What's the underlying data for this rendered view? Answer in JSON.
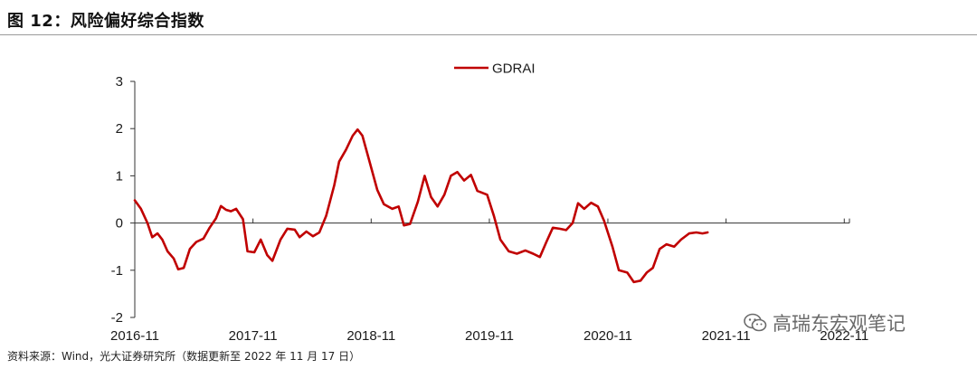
{
  "figure": {
    "title": "图 12：风险偏好综合指数",
    "source": "资料来源：Wind，光大证券研究所（数据更新至 2022 年 11 月 17 日）",
    "watermark": "高瑞东宏观笔记",
    "watermark_icon": "wechat-icon"
  },
  "chart_data": {
    "type": "line",
    "title": "",
    "xlabel": "",
    "ylabel": "",
    "ylim": [
      -2,
      3
    ],
    "yticks": [
      -2,
      -1,
      0,
      1,
      2,
      3
    ],
    "xlim": [
      "2016-11-01",
      "2022-11-17"
    ],
    "xtick_labels": [
      "2016-11",
      "2017-11",
      "2018-11",
      "2019-11",
      "2020-11",
      "2021-11",
      "2022-11"
    ],
    "grid": false,
    "legend_position": "top-center",
    "colors": {
      "GDRAI": "#c00000"
    },
    "series": [
      {
        "name": "GDRAI",
        "points": [
          [
            "2016-11-01",
            0.48
          ],
          [
            "2016-11-20",
            0.3
          ],
          [
            "2016-12-10",
            0.0
          ],
          [
            "2016-12-25",
            -0.3
          ],
          [
            "2017-01-10",
            -0.22
          ],
          [
            "2017-01-25",
            -0.35
          ],
          [
            "2017-02-10",
            -0.6
          ],
          [
            "2017-03-01",
            -0.75
          ],
          [
            "2017-03-15",
            -0.98
          ],
          [
            "2017-04-01",
            -0.95
          ],
          [
            "2017-04-20",
            -0.55
          ],
          [
            "2017-05-10",
            -0.4
          ],
          [
            "2017-06-01",
            -0.33
          ],
          [
            "2017-06-20",
            -0.1
          ],
          [
            "2017-07-10",
            0.1
          ],
          [
            "2017-07-25",
            0.36
          ],
          [
            "2017-08-10",
            0.28
          ],
          [
            "2017-08-25",
            0.25
          ],
          [
            "2017-09-10",
            0.3
          ],
          [
            "2017-10-01",
            0.08
          ],
          [
            "2017-10-15",
            -0.6
          ],
          [
            "2017-11-05",
            -0.62
          ],
          [
            "2017-11-25",
            -0.35
          ],
          [
            "2017-12-15",
            -0.68
          ],
          [
            "2017-12-31",
            -0.8
          ],
          [
            "2018-01-25",
            -0.35
          ],
          [
            "2018-02-15",
            -0.12
          ],
          [
            "2018-03-10",
            -0.14
          ],
          [
            "2018-03-25",
            -0.3
          ],
          [
            "2018-04-15",
            -0.18
          ],
          [
            "2018-05-05",
            -0.28
          ],
          [
            "2018-05-25",
            -0.2
          ],
          [
            "2018-06-15",
            0.15
          ],
          [
            "2018-07-10",
            0.8
          ],
          [
            "2018-07-25",
            1.3
          ],
          [
            "2018-08-15",
            1.55
          ],
          [
            "2018-09-05",
            1.85
          ],
          [
            "2018-09-20",
            1.98
          ],
          [
            "2018-10-05",
            1.85
          ],
          [
            "2018-10-25",
            1.35
          ],
          [
            "2018-11-20",
            0.7
          ],
          [
            "2018-12-10",
            0.4
          ],
          [
            "2019-01-05",
            0.3
          ],
          [
            "2019-01-25",
            0.35
          ],
          [
            "2019-02-10",
            -0.05
          ],
          [
            "2019-03-01",
            -0.02
          ],
          [
            "2019-03-25",
            0.45
          ],
          [
            "2019-04-15",
            1.0
          ],
          [
            "2019-05-05",
            0.55
          ],
          [
            "2019-05-25",
            0.35
          ],
          [
            "2019-06-15",
            0.6
          ],
          [
            "2019-07-05",
            1.0
          ],
          [
            "2019-07-25",
            1.08
          ],
          [
            "2019-08-15",
            0.9
          ],
          [
            "2019-09-05",
            1.02
          ],
          [
            "2019-09-25",
            0.68
          ],
          [
            "2019-10-25",
            0.6
          ],
          [
            "2019-11-15",
            0.15
          ],
          [
            "2019-12-05",
            -0.35
          ],
          [
            "2019-12-31",
            -0.6
          ],
          [
            "2020-01-25",
            -0.65
          ],
          [
            "2020-02-20",
            -0.58
          ],
          [
            "2020-03-15",
            -0.65
          ],
          [
            "2020-04-05",
            -0.72
          ],
          [
            "2020-04-25",
            -0.4
          ],
          [
            "2020-05-15",
            -0.1
          ],
          [
            "2020-06-05",
            -0.12
          ],
          [
            "2020-06-25",
            -0.15
          ],
          [
            "2020-07-15",
            0.0
          ],
          [
            "2020-08-01",
            0.42
          ],
          [
            "2020-08-20",
            0.3
          ],
          [
            "2020-09-10",
            0.43
          ],
          [
            "2020-10-01",
            0.35
          ],
          [
            "2020-10-20",
            0.05
          ],
          [
            "2020-11-15",
            -0.5
          ],
          [
            "2020-12-05",
            -1.0
          ],
          [
            "2020-12-31",
            -1.05
          ],
          [
            "2021-01-20",
            -1.25
          ],
          [
            "2021-02-10",
            -1.22
          ],
          [
            "2021-03-01",
            -1.05
          ],
          [
            "2021-03-20",
            -0.95
          ],
          [
            "2021-04-10",
            -0.55
          ],
          [
            "2021-05-01",
            -0.45
          ],
          [
            "2021-05-25",
            -0.5
          ],
          [
            "2021-06-15",
            -0.35
          ],
          [
            "2021-07-10",
            -0.22
          ],
          [
            "2021-08-01",
            -0.2
          ],
          [
            "2021-08-20",
            -0.22
          ],
          [
            "2021-09-05",
            -0.2
          ]
        ]
      }
    ]
  }
}
